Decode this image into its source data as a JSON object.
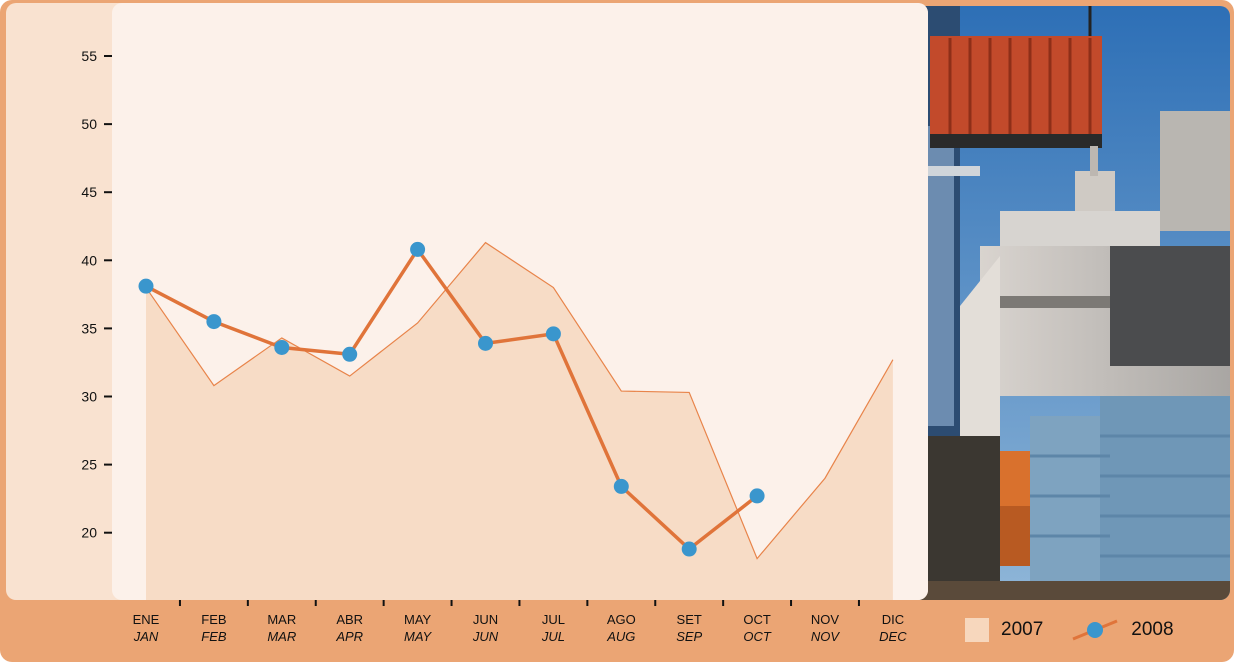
{
  "chart_data": {
    "type": "line",
    "categories": [
      {
        "es": "ENE",
        "en": "JAN"
      },
      {
        "es": "FEB",
        "en": "FEB"
      },
      {
        "es": "MAR",
        "en": "MAR"
      },
      {
        "es": "ABR",
        "en": "APR"
      },
      {
        "es": "MAY",
        "en": "MAY"
      },
      {
        "es": "JUN",
        "en": "JUN"
      },
      {
        "es": "JUL",
        "en": "JUL"
      },
      {
        "es": "AGO",
        "en": "AUG"
      },
      {
        "es": "SET",
        "en": "SEP"
      },
      {
        "es": "OCT",
        "en": "OCT"
      },
      {
        "es": "NOV",
        "en": "NOV"
      },
      {
        "es": "DIC",
        "en": "DEC"
      }
    ],
    "series": [
      {
        "name": "2007",
        "style": "area",
        "color": "#e8844a",
        "fill": "#f7dcc6",
        "values": [
          38.0,
          30.8,
          34.3,
          31.5,
          35.4,
          41.3,
          38.0,
          30.4,
          30.3,
          18.1,
          24.0,
          32.7
        ]
      },
      {
        "name": "2008",
        "style": "line-markers",
        "color": "#e0743a",
        "marker_color": "#3a96cd",
        "values": [
          38.1,
          35.5,
          33.6,
          33.1,
          40.8,
          33.9,
          34.6,
          23.4,
          18.8,
          22.7,
          null,
          null
        ]
      }
    ],
    "yticks": [
      20,
      25,
      30,
      35,
      40,
      45,
      50,
      55
    ],
    "ylim": [
      15.5,
      57.5
    ],
    "grid": false,
    "legend_position": "bottom-right"
  },
  "legend": {
    "label_2007": "2007",
    "label_2008": "2008"
  },
  "colors": {
    "frame": "#eba574",
    "panel": "#f9e2d0",
    "plot_background": "#fcf1ea"
  }
}
